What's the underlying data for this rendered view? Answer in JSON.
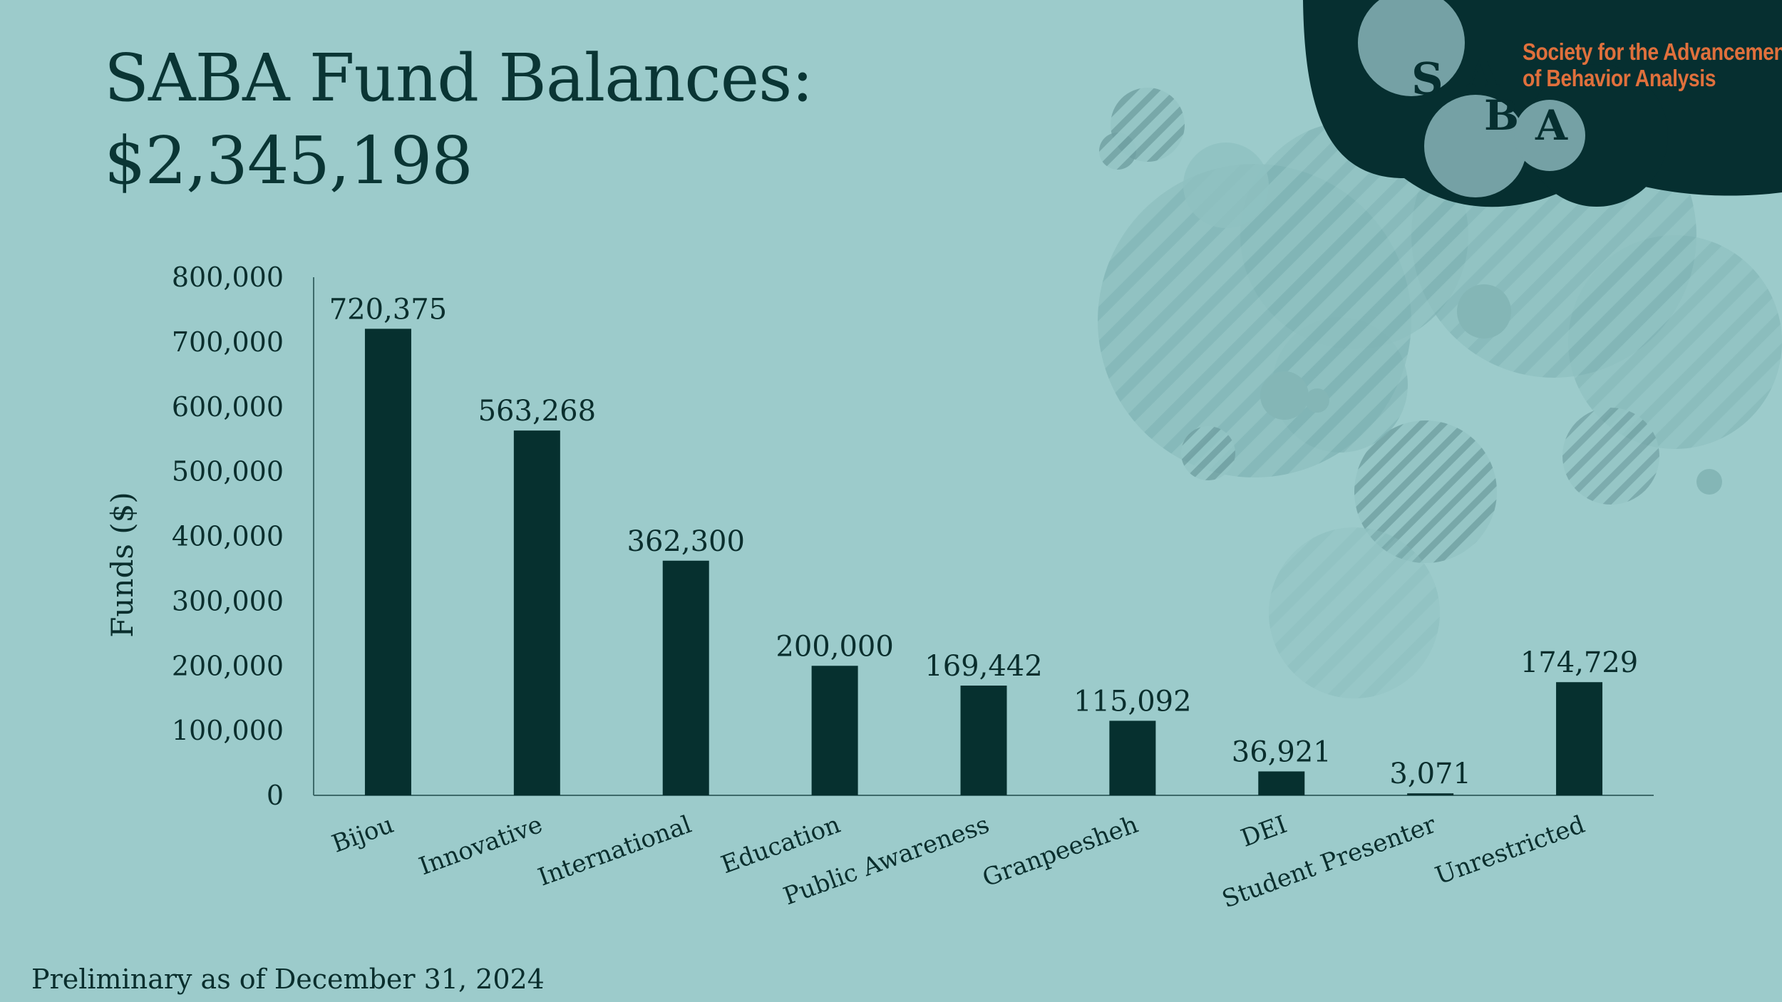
{
  "slide": {
    "title_line1": "SABA Fund Balances:",
    "title_line2": "$2,345,198",
    "footnote": "Preliminary as of December 31, 2024"
  },
  "logo": {
    "letters": [
      "S",
      "A",
      "B",
      "A"
    ],
    "org_line1": "Society for the Advancement",
    "org_line2": "of Behavior Analysis"
  },
  "colors": {
    "background": "#9ccbcb",
    "bar": "#06302f",
    "logo_dark": "#062f30",
    "logo_accent": "#e0703c"
  },
  "chart_data": {
    "type": "bar",
    "title": "",
    "xlabel": "",
    "ylabel": "Funds ($)",
    "ylim": [
      0,
      800000
    ],
    "yticks": [
      0,
      100000,
      200000,
      300000,
      400000,
      500000,
      600000,
      700000,
      800000
    ],
    "ytick_labels": [
      "0",
      "100,000",
      "200,000",
      "300,000",
      "400,000",
      "500,000",
      "600,000",
      "700,000",
      "800,000"
    ],
    "categories": [
      "Bijou",
      "Innovative",
      "International",
      "Education",
      "Public Awareness",
      "Granpeesheh",
      "DEI",
      "Student Presenter",
      "Unrestricted"
    ],
    "values": [
      720375,
      563268,
      362300,
      200000,
      169442,
      115092,
      36921,
      3071,
      174729
    ],
    "data_labels": [
      "720,375",
      "563,268",
      "362,300",
      "200,000",
      "169,442",
      "115,092",
      "36,921",
      "3,071",
      "174,729"
    ],
    "grid": false,
    "legend": "none"
  }
}
